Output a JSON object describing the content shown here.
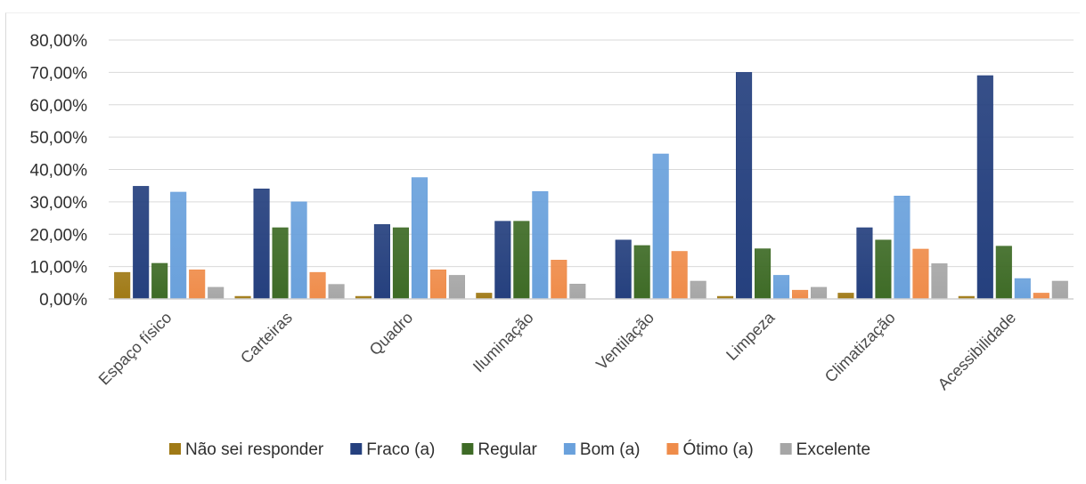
{
  "chart_data": {
    "type": "bar",
    "categories": [
      "Espaço físico",
      "Carteiras",
      "Quadro",
      "Iluminação",
      "Ventilação",
      "Limpeza",
      "Climatização",
      "Acessibilidade"
    ],
    "series": [
      {
        "name": "Não sei responder",
        "color": "#a07a16",
        "values": [
          8.2,
          0.8,
          0.8,
          1.8,
          0.0,
          0.8,
          1.8,
          0.8
        ]
      },
      {
        "name": "Fraco (a)",
        "color": "#25407e",
        "values": [
          34.8,
          34.0,
          23.0,
          24.0,
          18.2,
          70.0,
          22.0,
          69.0
        ]
      },
      {
        "name": "Regular",
        "color": "#3e6b26",
        "values": [
          11.0,
          22.0,
          22.0,
          24.0,
          16.5,
          15.5,
          18.2,
          16.3
        ]
      },
      {
        "name": "Bom (a)",
        "color": "#6aa1dc",
        "values": [
          33.0,
          30.0,
          37.5,
          33.2,
          44.8,
          7.3,
          31.8,
          6.3
        ]
      },
      {
        "name": "Ótimo (a)",
        "color": "#ef8c4a",
        "values": [
          9.0,
          8.2,
          9.0,
          12.0,
          14.7,
          2.7,
          15.4,
          1.8
        ]
      },
      {
        "name": "Excelente",
        "color": "#a6a6a6",
        "values": [
          3.6,
          4.5,
          7.3,
          4.6,
          5.5,
          3.6,
          10.9,
          5.5
        ]
      }
    ],
    "ylim": [
      0,
      80
    ],
    "yticks": [
      "0,00%",
      "10,00%",
      "20,00%",
      "30,00%",
      "40,00%",
      "50,00%",
      "60,00%",
      "70,00%",
      "80,00%"
    ],
    "y_unit": "%",
    "grid": true,
    "legend_position": "bottom",
    "title": "",
    "xlabel": "",
    "ylabel": ""
  }
}
